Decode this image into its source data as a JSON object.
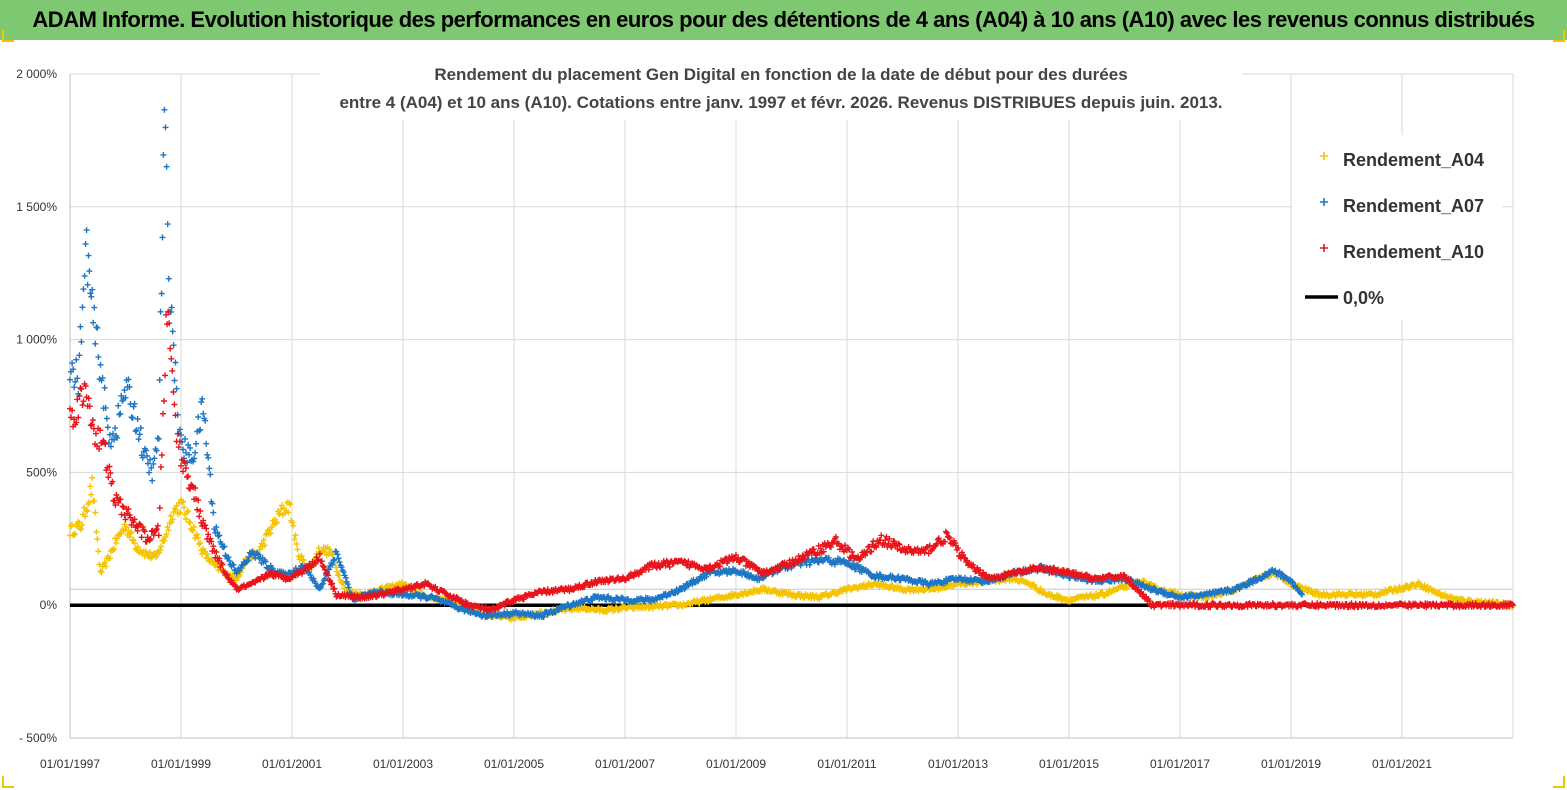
{
  "banner": {
    "title": "ADAM Informe. Evolution historique des performances en euros pour des détentions de 4 ans (A04) à 10 ans (A10) avec les revenus connus distribués"
  },
  "colors": {
    "banner_bg": "#7dc870",
    "A04": "#f5c400",
    "A07": "#1f77c4",
    "A10": "#e8141c",
    "zero": "#000000",
    "corner": "#f5c400"
  },
  "chart_data": {
    "type": "scatter",
    "title_line1": "Rendement du placement Gen Digital en fonction de la date de début pour des durées",
    "title_line2": "entre 4 (A04) et 10 ans (A10). Cotations entre janv. 1997 et févr. 2026. Revenus DISTRIBUES depuis juin. 2013.",
    "xlabel": "",
    "ylabel": "",
    "ylim": [
      -500,
      2000
    ],
    "xlim": [
      1997.0,
      2023.0
    ],
    "y_ticks": [
      {
        "value": 2000,
        "label": "2 000%"
      },
      {
        "value": 1500,
        "label": "1 500%"
      },
      {
        "value": 1000,
        "label": "1 000%"
      },
      {
        "value": 500,
        "label": "500%"
      },
      {
        "value": 0,
        "label": "0%"
      },
      {
        "value": -500,
        "label": "- 500%"
      }
    ],
    "x_ticks": [
      {
        "value": 1997,
        "label": "01/01/1997"
      },
      {
        "value": 1999,
        "label": "01/01/1999"
      },
      {
        "value": 2001,
        "label": "01/01/2001"
      },
      {
        "value": 2003,
        "label": "01/01/2003"
      },
      {
        "value": 2005,
        "label": "01/01/2005"
      },
      {
        "value": 2007,
        "label": "01/01/2007"
      },
      {
        "value": 2009,
        "label": "01/01/2009"
      },
      {
        "value": 2011,
        "label": "01/01/2011"
      },
      {
        "value": 2013,
        "label": "01/01/2013"
      },
      {
        "value": 2015,
        "label": "01/01/2015"
      },
      {
        "value": 2017,
        "label": "01/01/2017"
      },
      {
        "value": 2019,
        "label": "01/01/2019"
      },
      {
        "value": 2021,
        "label": "01/01/2021"
      }
    ],
    "legend_position": "top-right",
    "legend": [
      {
        "name": "Rendement_A04",
        "key": "A04",
        "marker": "+"
      },
      {
        "name": "Rendement_A07",
        "key": "A07",
        "marker": "+"
      },
      {
        "name": "Rendement_A10",
        "key": "A10",
        "marker": "+"
      },
      {
        "name": "0,0%",
        "key": "zero",
        "marker": "line"
      }
    ],
    "series": [
      {
        "name": "Rendement_A04",
        "x": [
          1997.0,
          1997.2,
          1997.4,
          1997.55,
          1997.7,
          1997.85,
          1998.0,
          1998.2,
          1998.4,
          1998.55,
          1998.7,
          1998.85,
          1999.0,
          1999.2,
          1999.4,
          1999.6,
          1999.8,
          2000.0,
          2000.2,
          2000.4,
          2000.6,
          2000.8,
          2000.95,
          2001.1,
          2001.3,
          2001.5,
          2001.7,
          2001.85,
          2002.0,
          2002.3,
          2002.6,
          2003.0,
          2003.4,
          2003.8,
          2004.2,
          2004.6,
          2005.0,
          2005.4,
          2005.8,
          2006.2,
          2006.6,
          2007.0,
          2007.5,
          2008.0,
          2008.5,
          2009.0,
          2009.5,
          2010.0,
          2010.5,
          2011.0,
          2011.5,
          2012.0,
          2012.5,
          2013.0,
          2013.5,
          2014.0,
          2014.3,
          2014.6,
          2015.0,
          2015.3,
          2015.6,
          2016.0,
          2016.3,
          2016.6,
          2017.0,
          2017.5,
          2018.0,
          2018.4,
          2018.7,
          2019.0,
          2019.5,
          2020.0,
          2020.5,
          2020.9,
          2021.3,
          2021.7,
          2022.0,
          2022.5,
          2023.0
        ],
        "values": [
          280,
          300,
          450,
          120,
          180,
          250,
          300,
          220,
          190,
          180,
          250,
          350,
          380,
          300,
          200,
          150,
          120,
          100,
          180,
          200,
          280,
          350,
          380,
          200,
          130,
          210,
          200,
          110,
          50,
          40,
          60,
          80,
          30,
          20,
          -20,
          -40,
          -50,
          -30,
          -20,
          -10,
          -20,
          -10,
          -5,
          0,
          20,
          40,
          60,
          40,
          30,
          60,
          80,
          60,
          60,
          80,
          90,
          100,
          80,
          40,
          20,
          30,
          40,
          70,
          90,
          60,
          40,
          30,
          60,
          100,
          120,
          80,
          40,
          40,
          40,
          60,
          80,
          40,
          20,
          10,
          0
        ]
      },
      {
        "name": "Rendement_A07",
        "x": [
          1997.0,
          1997.15,
          1997.3,
          1997.4,
          1997.55,
          1997.7,
          1997.85,
          1998.0,
          1998.2,
          1998.35,
          1998.5,
          1998.6,
          1998.7,
          1998.8,
          1998.9,
          1999.0,
          1999.2,
          1999.4,
          1999.6,
          1999.8,
          2000.0,
          2000.3,
          2000.6,
          2000.9,
          2001.2,
          2001.5,
          2001.8,
          2002.1,
          2002.5,
          2003.0,
          2003.5,
          2004.0,
          2004.5,
          2005.0,
          2005.5,
          2006.0,
          2006.5,
          2007.0,
          2007.5,
          2008.0,
          2008.5,
          2009.0,
          2009.4,
          2009.8,
          2010.2,
          2010.6,
          2011.0,
          2011.5,
          2012.0,
          2012.5,
          2013.0,
          2013.5,
          2014.0,
          2014.5,
          2015.0,
          2015.5,
          2016.0,
          2016.5,
          2017.0,
          2017.5,
          2018.0,
          2018.4,
          2018.7,
          2019.0,
          2019.2
        ],
        "values": [
          880,
          860,
          1350,
          1100,
          900,
          620,
          680,
          820,
          700,
          550,
          500,
          650,
          1800,
          1200,
          850,
          600,
          550,
          750,
          300,
          200,
          120,
          200,
          140,
          110,
          150,
          60,
          200,
          20,
          50,
          40,
          30,
          -10,
          -40,
          -30,
          -40,
          0,
          30,
          20,
          20,
          60,
          120,
          130,
          100,
          140,
          160,
          170,
          160,
          110,
          100,
          80,
          100,
          90,
          120,
          140,
          110,
          90,
          100,
          60,
          30,
          40,
          60,
          100,
          130,
          90,
          40
        ]
      },
      {
        "name": "Rendement_A10",
        "x": [
          1997.0,
          1997.15,
          1997.3,
          1997.45,
          1997.6,
          1997.8,
          1998.0,
          1998.2,
          1998.4,
          1998.6,
          1998.75,
          1998.9,
          1999.0,
          1999.2,
          1999.4,
          1999.6,
          1999.8,
          2000.0,
          2000.3,
          2000.6,
          2000.9,
          2001.2,
          2001.5,
          2001.8,
          2002.2,
          2002.6,
          2003.0,
          2003.4,
          2003.8,
          2004.2,
          2004.6,
          2005.0,
          2005.5,
          2006.0,
          2006.5,
          2007.0,
          2007.5,
          2008.0,
          2008.5,
          2009.0,
          2009.5,
          2010.0,
          2010.4,
          2010.8,
          2011.2,
          2011.6,
          2012.0,
          2012.4,
          2012.8,
          2013.2,
          2013.6,
          2014.0,
          2014.5,
          2015.0,
          2015.5,
          2016.0,
          2016.5,
          2017.0,
          2018.0,
          2019.0,
          2020.0,
          2021.0,
          2022.0,
          2023.0
        ],
        "values": [
          700,
          760,
          800,
          650,
          600,
          400,
          350,
          300,
          250,
          280,
          1120,
          700,
          550,
          450,
          300,
          200,
          120,
          60,
          80,
          120,
          100,
          130,
          180,
          40,
          30,
          40,
          60,
          80,
          40,
          0,
          -20,
          20,
          50,
          60,
          90,
          100,
          150,
          160,
          140,
          180,
          120,
          160,
          200,
          240,
          170,
          250,
          210,
          200,
          260,
          150,
          100,
          120,
          140,
          120,
          100,
          110,
          0,
          0,
          0,
          0,
          0,
          0,
          0,
          0
        ]
      }
    ]
  }
}
